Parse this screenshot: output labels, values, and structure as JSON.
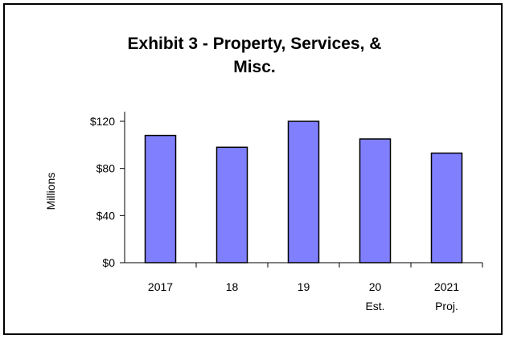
{
  "chart_data": {
    "type": "bar",
    "title_lines": [
      "Exhibit 3 - Property, Services, &",
      "Misc."
    ],
    "xlabel": "",
    "ylabel": "Millions",
    "categories": [
      {
        "line1": "2017",
        "line2": ""
      },
      {
        "line1": "18",
        "line2": ""
      },
      {
        "line1": "19",
        "line2": ""
      },
      {
        "line1": "20",
        "line2": "Est."
      },
      {
        "line1": "2021",
        "line2": "Proj."
      }
    ],
    "values": [
      108,
      98,
      120,
      105,
      93
    ],
    "ylim": [
      0,
      120
    ],
    "yticks": [
      {
        "value": 0,
        "label": "$0"
      },
      {
        "value": 40,
        "label": "$40"
      },
      {
        "value": 80,
        "label": "$80"
      },
      {
        "value": 120,
        "label": "$120"
      }
    ],
    "grid": false,
    "legend": "none",
    "colors": {
      "bar_fill": "#8080ff",
      "bar_stroke": "#000000",
      "axis": "#000000"
    }
  }
}
